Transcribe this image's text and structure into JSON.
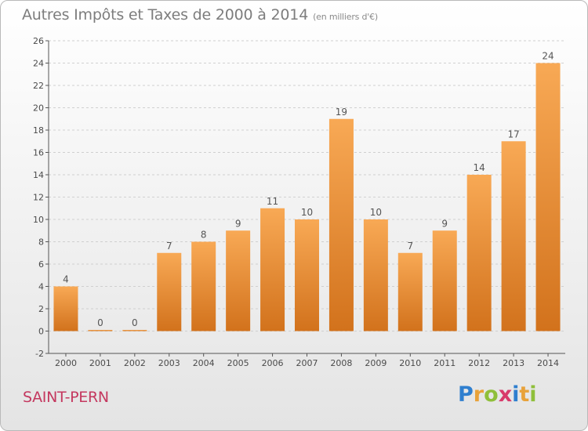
{
  "header": {
    "title": "Autres Impôts et Taxes de 2000 à 2014",
    "subtitle": "(en milliers d'€)"
  },
  "footer": {
    "commune": "SAINT-PERN",
    "logo": {
      "letters": [
        "P",
        "r",
        "o",
        "x",
        "i",
        "t",
        "i"
      ],
      "colors": [
        "#2f7fcf",
        "#e8a23a",
        "#8fbf3a",
        "#d83a6a",
        "#2f7fcf",
        "#e8a23a",
        "#8fbf3a"
      ]
    }
  },
  "colors": {
    "bar_light": "#f8a955",
    "bar_dark": "#d2721c",
    "grid": "#d0d0d0",
    "axis": "#555555"
  },
  "chart_data": {
    "type": "bar",
    "categories": [
      "2000",
      "2001",
      "2002",
      "2003",
      "2004",
      "2005",
      "2006",
      "2007",
      "2008",
      "2009",
      "2010",
      "2011",
      "2012",
      "2013",
      "2014"
    ],
    "values": [
      4,
      0,
      0,
      7,
      8,
      9,
      11,
      10,
      19,
      10,
      7,
      9,
      14,
      17,
      24
    ],
    "title": "Autres Impôts et Taxes de 2000 à 2014",
    "subtitle": "(en milliers d'€)",
    "xlabel": "",
    "ylabel": "",
    "ylim": [
      -2,
      26
    ],
    "yticks": [
      -2,
      0,
      2,
      4,
      6,
      8,
      10,
      12,
      14,
      16,
      18,
      20,
      22,
      24,
      26
    ],
    "grid": true,
    "legend": "none"
  }
}
